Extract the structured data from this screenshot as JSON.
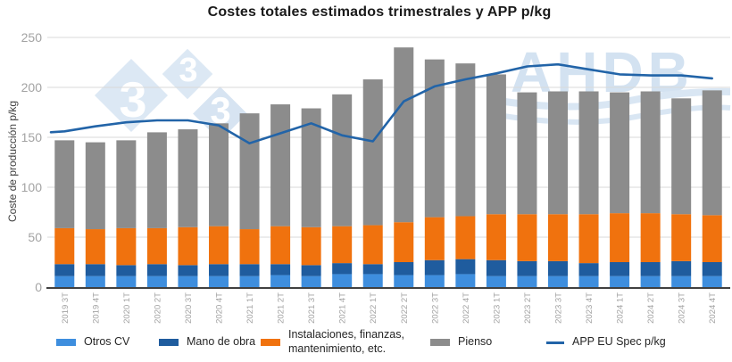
{
  "watermark": {
    "logo_digit": "3",
    "brand": "AHDB"
  },
  "chart_data": {
    "type": "bar",
    "stacked": true,
    "title": "Costes totales estimados trimestrales y APP p/kg",
    "xlabel": "",
    "ylabel": "Coste de producción p/kg",
    "ylim": [
      0,
      250
    ],
    "yticks": [
      0,
      50,
      100,
      150,
      200,
      250
    ],
    "grid": "horizontal",
    "legend_position": "bottom",
    "categories": [
      "2019 3T",
      "2019 4T",
      "2020 1T",
      "2020 2T",
      "2020 3T",
      "2020 4T",
      "2021 1T",
      "2021 2T",
      "2021 3T",
      "2021 4T",
      "2022 1T",
      "2022 2T",
      "2022 3T",
      "2022 4T",
      "2023 1T",
      "2023 2T",
      "2023 3T",
      "2023 4T",
      "2024 1T",
      "2024 2T",
      "2024 3T",
      "2024 4T"
    ],
    "series": [
      {
        "key": "otros-cv",
        "name": "Otros CV",
        "color": "#3e8ede",
        "values": [
          11,
          11,
          11,
          11,
          11,
          11,
          11,
          12,
          11,
          13,
          13,
          12,
          12,
          13,
          11,
          11,
          11,
          11,
          11,
          11,
          11,
          11
        ]
      },
      {
        "key": "mano-de-obra",
        "name": "Mano de obra",
        "color": "#1f5c9e",
        "values": [
          12,
          12,
          11,
          12,
          11,
          12,
          12,
          11,
          11,
          11,
          10,
          13,
          15,
          15,
          16,
          15,
          15,
          13,
          14,
          14,
          15,
          14
        ]
      },
      {
        "key": "instalaciones",
        "name": "Instalaciones, finanzas, mantenimiento, etc.",
        "color": "#f0720e",
        "values": [
          36,
          35,
          37,
          36,
          38,
          38,
          35,
          38,
          38,
          37,
          39,
          40,
          43,
          43,
          46,
          47,
          47,
          49,
          49,
          49,
          47,
          47
        ]
      },
      {
        "key": "pienso",
        "name": "Pienso",
        "color": "#8c8c8c",
        "values": [
          88,
          87,
          88,
          96,
          98,
          103,
          116,
          122,
          119,
          132,
          146,
          175,
          158,
          153,
          140,
          122,
          123,
          123,
          121,
          122,
          116,
          125
        ]
      }
    ],
    "bar_totals": [
      147,
      145,
      147,
      155,
      158,
      164,
      174,
      183,
      179,
      193,
      208,
      240,
      228,
      224,
      213,
      195,
      196,
      196,
      195,
      196,
      189,
      197
    ],
    "line_series": {
      "key": "app-eu-spec",
      "name": "APP EU Spec p/kg",
      "color": "#2264a8",
      "values": [
        156,
        161,
        165,
        167,
        167,
        162,
        144,
        154,
        164,
        152,
        146,
        186,
        201,
        208,
        214,
        221,
        223,
        218,
        213,
        212,
        212,
        209
      ]
    },
    "colors": {
      "grid": "#d9d9d9",
      "tick_label": "#a3a3a3",
      "axis_line": "#000000",
      "axis_title": "#404040",
      "title": "#1a1a1a",
      "watermark_fill": "#dce8f4",
      "watermark_text": "#d3e2f1"
    }
  }
}
